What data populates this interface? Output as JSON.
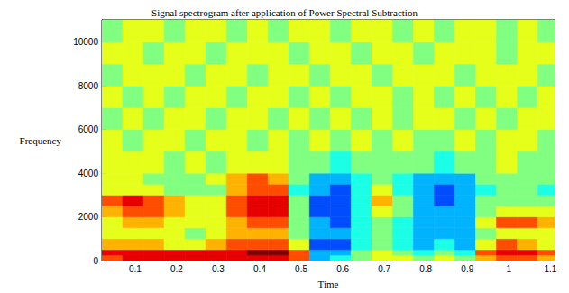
{
  "chart_data": {
    "type": "heatmap",
    "title": "Signal spectrogram after application of Power Spectral Subtraction",
    "x_label": "Time",
    "y_label": "Frequency",
    "xlim": [
      0.02,
      1.11
    ],
    "xticks": [
      0.1,
      0.2,
      0.3,
      0.4,
      0.5,
      0.6,
      0.7,
      0.8,
      0.9,
      1,
      1.1
    ],
    "ylim": [
      0,
      11025
    ],
    "yticks": [
      0,
      2000,
      4000,
      6000,
      8000,
      10000
    ],
    "grid": false,
    "x_edges": [
      0.02,
      0.07,
      0.12,
      0.17,
      0.22,
      0.27,
      0.32,
      0.37,
      0.42,
      0.47,
      0.52,
      0.57,
      0.62,
      0.67,
      0.72,
      0.77,
      0.82,
      0.87,
      0.92,
      0.97,
      1.02,
      1.07,
      1.11
    ],
    "y_edges": [
      0,
      250,
      500,
      1000,
      1500,
      2000,
      2500,
      3000,
      3500,
      4000,
      5000,
      6000,
      7000,
      8000,
      9000,
      10000,
      11025
    ],
    "value_range": [
      0,
      10
    ],
    "cells": [
      [
        8,
        9,
        9,
        9,
        9,
        9,
        9,
        9,
        9,
        8,
        3,
        4,
        5,
        6,
        6,
        5,
        6,
        5,
        7,
        8,
        8,
        7
      ],
      [
        9,
        9,
        9,
        9,
        9,
        9,
        9,
        10,
        10,
        8,
        3,
        3,
        5,
        6,
        5,
        4,
        5,
        4,
        8,
        9,
        9,
        8
      ],
      [
        7,
        7,
        7,
        6,
        6,
        7,
        8,
        8,
        8,
        6,
        2,
        2,
        4,
        5,
        4,
        3,
        4,
        3,
        6,
        8,
        7,
        6
      ],
      [
        6,
        6,
        6,
        6,
        5,
        6,
        7,
        7,
        7,
        5,
        3,
        3,
        4,
        5,
        4,
        3,
        3,
        3,
        5,
        6,
        6,
        6
      ],
      [
        6,
        7,
        7,
        6,
        6,
        6,
        7,
        8,
        8,
        5,
        3,
        2,
        4,
        5,
        4,
        3,
        3,
        3,
        6,
        8,
        8,
        7
      ],
      [
        7,
        8,
        8,
        7,
        6,
        6,
        8,
        9,
        9,
        5,
        2,
        2,
        4,
        6,
        5,
        3,
        3,
        3,
        5,
        6,
        6,
        6
      ],
      [
        8,
        9,
        8,
        7,
        6,
        6,
        8,
        9,
        9,
        5,
        2,
        2,
        4,
        7,
        5,
        3,
        2,
        3,
        5,
        5,
        5,
        5
      ],
      [
        6,
        6,
        6,
        5,
        5,
        5,
        7,
        8,
        8,
        4,
        3,
        2,
        4,
        6,
        4,
        3,
        2,
        3,
        4,
        5,
        5,
        4
      ],
      [
        6,
        6,
        5,
        5,
        5,
        6,
        7,
        8,
        7,
        5,
        3,
        3,
        4,
        5,
        4,
        3,
        3,
        3,
        5,
        5,
        5,
        5
      ],
      [
        6,
        6,
        6,
        5,
        6,
        5,
        6,
        6,
        6,
        5,
        5,
        4,
        5,
        5,
        5,
        5,
        4,
        5,
        5,
        6,
        5,
        5
      ],
      [
        6,
        5,
        6,
        6,
        5,
        6,
        6,
        5,
        6,
        5,
        6,
        5,
        6,
        5,
        6,
        5,
        5,
        6,
        5,
        6,
        6,
        5
      ],
      [
        5,
        6,
        5,
        6,
        6,
        5,
        6,
        6,
        5,
        6,
        5,
        6,
        5,
        6,
        5,
        6,
        6,
        5,
        6,
        5,
        6,
        6
      ],
      [
        6,
        5,
        6,
        5,
        6,
        6,
        5,
        6,
        6,
        5,
        6,
        5,
        6,
        6,
        5,
        6,
        5,
        6,
        5,
        6,
        5,
        6
      ],
      [
        5,
        6,
        6,
        6,
        5,
        6,
        6,
        5,
        6,
        6,
        5,
        6,
        6,
        5,
        6,
        6,
        6,
        5,
        6,
        6,
        6,
        5
      ],
      [
        6,
        6,
        5,
        6,
        6,
        5,
        6,
        6,
        6,
        5,
        6,
        6,
        5,
        6,
        6,
        5,
        6,
        6,
        6,
        5,
        6,
        6
      ],
      [
        5,
        6,
        6,
        5,
        6,
        6,
        5,
        6,
        5,
        6,
        6,
        5,
        6,
        6,
        5,
        6,
        5,
        6,
        6,
        5,
        6,
        5
      ]
    ]
  }
}
